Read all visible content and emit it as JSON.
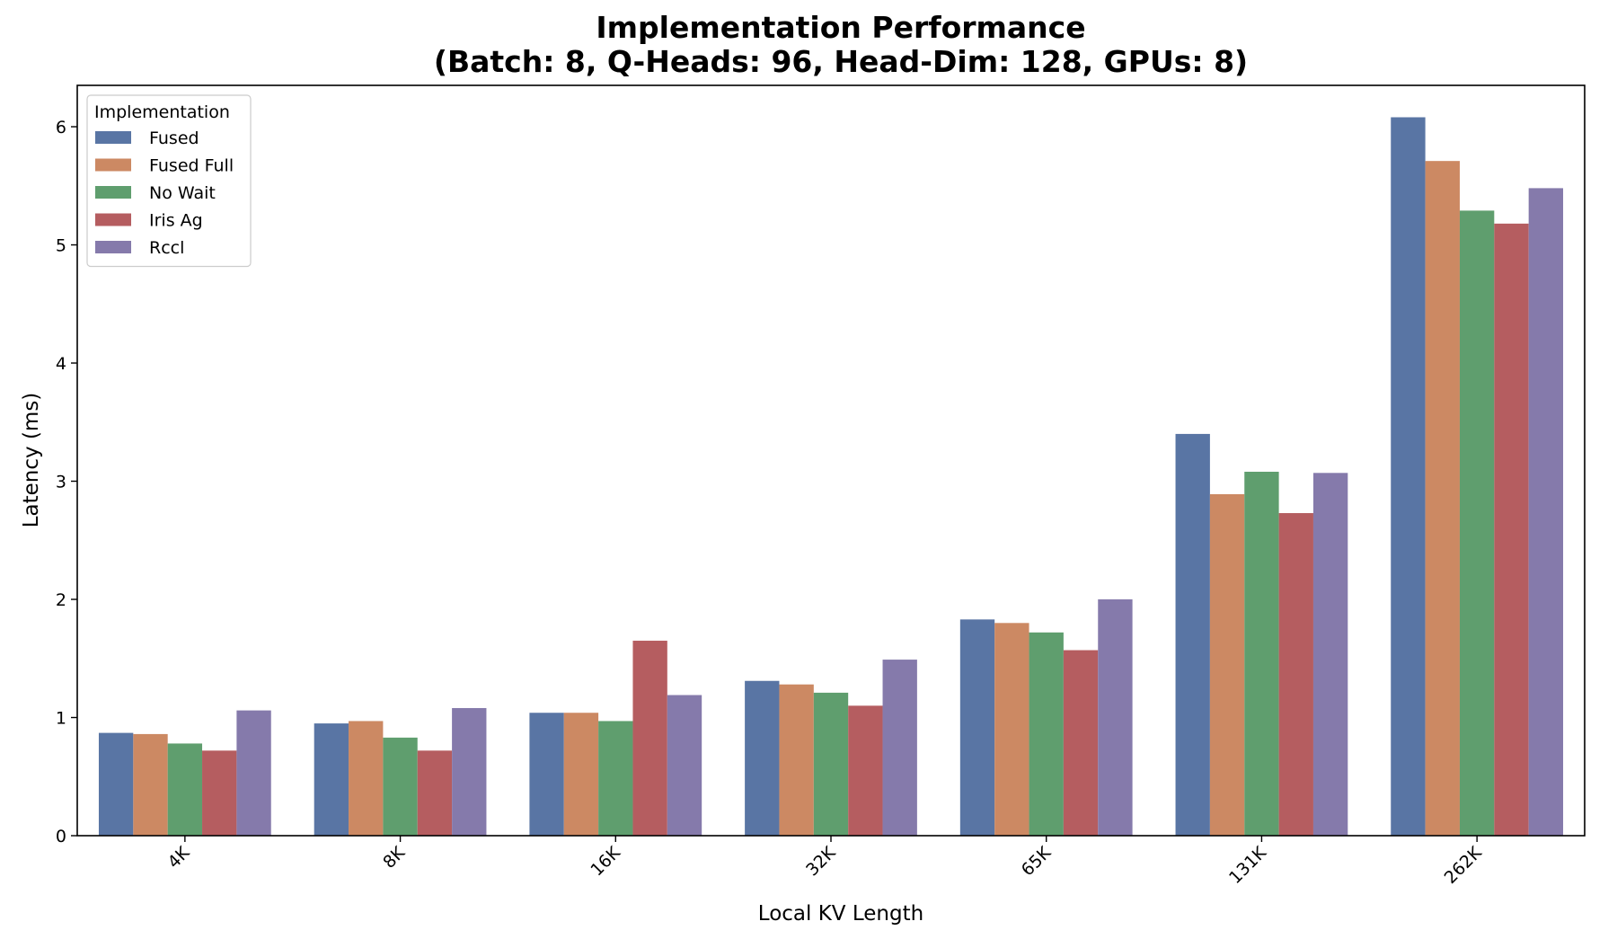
{
  "chart_data": {
    "type": "bar",
    "title_lines": [
      "Implementation Performance",
      "(Batch: 8, Q-Heads: 96, Head-Dim: 128, GPUs: 8)"
    ],
    "xlabel": "Local KV Length",
    "ylabel": "Latency (ms)",
    "categories": [
      "4K",
      "8K",
      "16K",
      "32K",
      "65K",
      "131K",
      "262K"
    ],
    "ylim": [
      0,
      6.35
    ],
    "yticks": [
      0,
      1,
      2,
      3,
      4,
      5,
      6
    ],
    "grid": false,
    "legend": {
      "title": "Implementation",
      "placement": "top-left"
    },
    "series": [
      {
        "name": "Fused",
        "color": "#5975a4",
        "values": [
          0.87,
          0.95,
          1.04,
          1.31,
          1.83,
          3.4,
          6.08
        ]
      },
      {
        "name": "Fused Full",
        "color": "#cc8963",
        "values": [
          0.86,
          0.97,
          1.04,
          1.28,
          1.8,
          2.89,
          5.71
        ]
      },
      {
        "name": "No Wait",
        "color": "#5f9e6e",
        "values": [
          0.78,
          0.83,
          0.97,
          1.21,
          1.72,
          3.08,
          5.29
        ]
      },
      {
        "name": "Iris Ag",
        "color": "#b55d60",
        "values": [
          0.72,
          0.72,
          1.65,
          1.1,
          1.57,
          2.73,
          5.18
        ]
      },
      {
        "name": "Rccl",
        "color": "#857aab",
        "values": [
          1.06,
          1.08,
          1.19,
          1.49,
          2.0,
          3.07,
          5.48
        ]
      }
    ]
  }
}
